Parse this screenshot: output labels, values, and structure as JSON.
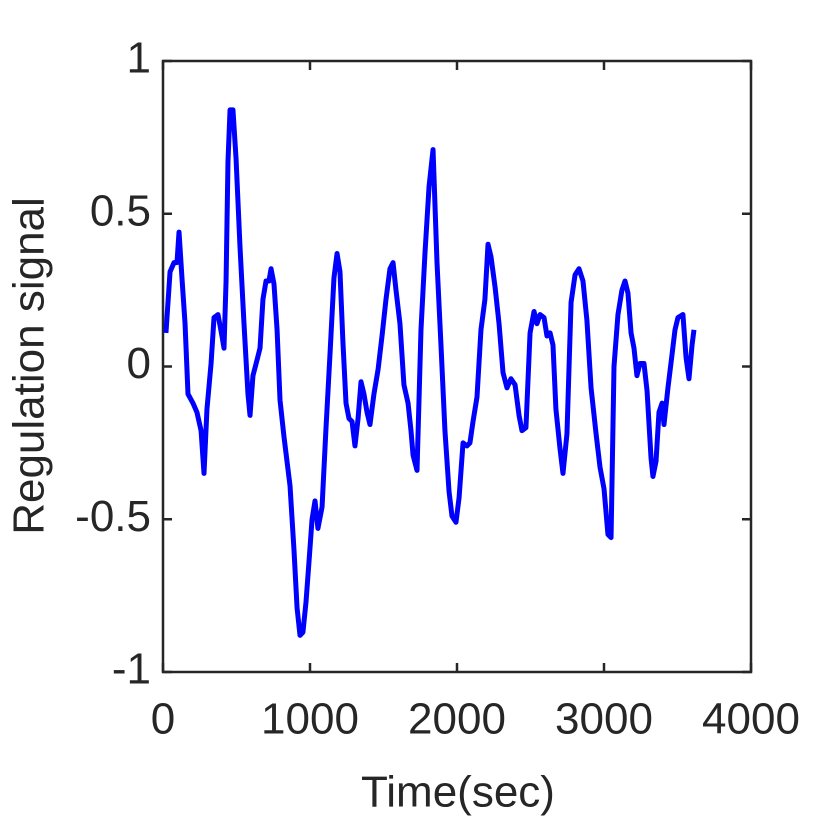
{
  "chart_data": {
    "type": "line",
    "x_label": "Time(sec)",
    "y_label": "Regulation signal",
    "x": [
      20,
      48,
      75,
      95,
      109,
      129,
      150,
      170,
      204,
      231,
      259,
      279,
      299,
      327,
      347,
      374,
      401,
      415,
      429,
      442,
      456,
      476,
      497,
      524,
      551,
      578,
      592,
      612,
      639,
      660,
      680,
      701,
      721,
      735,
      755,
      776,
      796,
      823,
      864,
      891,
      912,
      932,
      952,
      973,
      993,
      1014,
      1034,
      1054,
      1082,
      1109,
      1136,
      1163,
      1184,
      1204,
      1224,
      1245,
      1265,
      1286,
      1306,
      1327,
      1347,
      1367,
      1388,
      1408,
      1435,
      1463,
      1490,
      1517,
      1544,
      1565,
      1585,
      1612,
      1639,
      1667,
      1687,
      1701,
      1728,
      1755,
      1782,
      1810,
      1837,
      1864,
      1891,
      1918,
      1946,
      1966,
      1993,
      2014,
      2041,
      2068,
      2088,
      2109,
      2136,
      2163,
      2190,
      2211,
      2231,
      2259,
      2286,
      2313,
      2340,
      2367,
      2395,
      2422,
      2442,
      2469,
      2497,
      2524,
      2544,
      2565,
      2592,
      2612,
      2633,
      2653,
      2673,
      2701,
      2721,
      2748,
      2776,
      2803,
      2830,
      2857,
      2884,
      2912,
      2946,
      2973,
      3000,
      3027,
      3048,
      3068,
      3095,
      3122,
      3143,
      3163,
      3184,
      3204,
      3224,
      3245,
      3272,
      3293,
      3320,
      3333,
      3354,
      3374,
      3395,
      3408,
      3435,
      3463,
      3483,
      3503,
      3537,
      3558,
      3578,
      3599,
      3612
    ],
    "series": [
      {
        "color": "#0000ff",
        "values": [
          0.11,
          0.31,
          0.34,
          0.34,
          0.44,
          0.29,
          0.14,
          -0.09,
          -0.12,
          -0.15,
          -0.21,
          -0.35,
          -0.14,
          0.01,
          0.16,
          0.17,
          0.1,
          0.06,
          0.28,
          0.67,
          0.84,
          0.84,
          0.68,
          0.39,
          0.14,
          -0.09,
          -0.16,
          -0.03,
          0.02,
          0.06,
          0.22,
          0.28,
          0.28,
          0.32,
          0.27,
          0.12,
          -0.11,
          -0.23,
          -0.39,
          -0.6,
          -0.79,
          -0.88,
          -0.87,
          -0.77,
          -0.64,
          -0.5,
          -0.44,
          -0.53,
          -0.46,
          -0.2,
          0.04,
          0.29,
          0.37,
          0.31,
          0.08,
          -0.12,
          -0.17,
          -0.18,
          -0.26,
          -0.17,
          -0.05,
          -0.09,
          -0.15,
          -0.19,
          -0.09,
          -0.01,
          0.1,
          0.22,
          0.32,
          0.34,
          0.25,
          0.14,
          -0.06,
          -0.12,
          -0.21,
          -0.29,
          -0.34,
          0.12,
          0.37,
          0.59,
          0.71,
          0.34,
          0.07,
          -0.21,
          -0.41,
          -0.49,
          -0.51,
          -0.43,
          -0.25,
          -0.26,
          -0.25,
          -0.18,
          -0.1,
          0.12,
          0.22,
          0.4,
          0.36,
          0.26,
          0.14,
          -0.02,
          -0.07,
          -0.04,
          -0.06,
          -0.16,
          -0.21,
          -0.2,
          0.11,
          0.18,
          0.14,
          0.17,
          0.16,
          0.1,
          0.11,
          0.07,
          -0.14,
          -0.27,
          -0.35,
          -0.22,
          0.21,
          0.3,
          0.32,
          0.28,
          0.15,
          -0.07,
          -0.22,
          -0.33,
          -0.4,
          -0.55,
          -0.56,
          0.0,
          0.17,
          0.25,
          0.28,
          0.24,
          0.11,
          0.06,
          -0.03,
          0.01,
          0.01,
          -0.08,
          -0.3,
          -0.36,
          -0.31,
          -0.15,
          -0.12,
          -0.19,
          -0.07,
          0.04,
          0.12,
          0.16,
          0.17,
          0.03,
          -0.04,
          0.07,
          0.12
        ]
      }
    ],
    "xlim": [
      0,
      4000
    ],
    "xticks": [
      0,
      1000,
      2000,
      3000,
      4000
    ],
    "ylim": [
      -1,
      1
    ],
    "yticks": [
      -1,
      -0.5,
      0,
      0.5,
      1
    ]
  }
}
